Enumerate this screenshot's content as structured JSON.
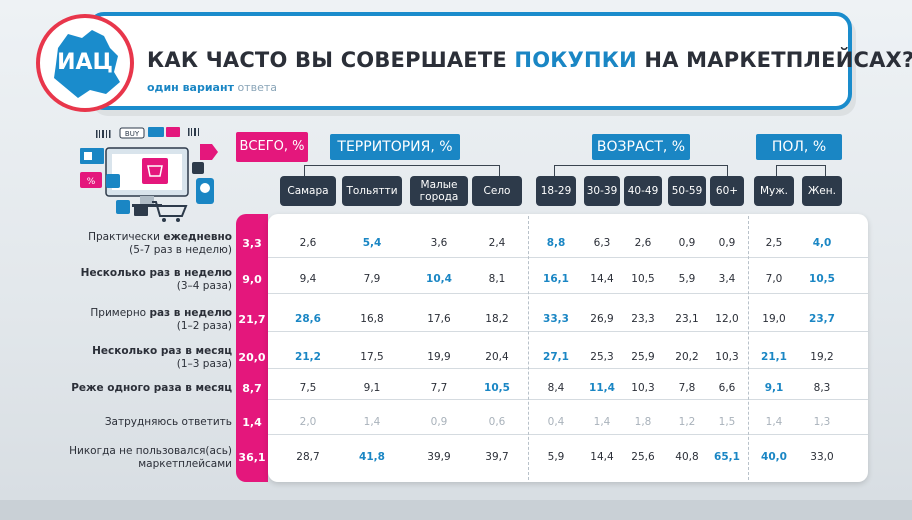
{
  "logo": {
    "text": "ИАЦ"
  },
  "header": {
    "title_pre": "КАК ЧАСТО ВЫ СОВЕРШАЕТЕ ",
    "title_hl": "ПОКУПКИ",
    "title_post": " НА МАРКЕТПЛЕЙСАХ?",
    "subtitle_main": "один вариант",
    "subtitle_muted": " ответа"
  },
  "illustration": {
    "buy_label": "BUY",
    "icon": "online-shopping-illustration"
  },
  "groups": {
    "total": "ВСЕГО, %",
    "territory": "ТЕРРИТОРИЯ, %",
    "age": "ВОЗРАСТ, %",
    "sex": "ПОЛ, %"
  },
  "columns": [
    {
      "label": "Самара"
    },
    {
      "label": "Тольятти"
    },
    {
      "label": "Малые города"
    },
    {
      "label": "Село"
    },
    {
      "label": "18-29"
    },
    {
      "label": "30-39"
    },
    {
      "label": "40-49"
    },
    {
      "label": "50-59"
    },
    {
      "label": "60+"
    },
    {
      "label": "Муж."
    },
    {
      "label": "Жен."
    }
  ],
  "rows": [
    {
      "label_a": "Практически ",
      "label_b": "ежедневно",
      "label2": "(5-7 раз в неделю)",
      "total": "3,3",
      "values": [
        "2,6",
        "5,4",
        "3,6",
        "2,4",
        "8,8",
        "6,3",
        "2,6",
        "0,9",
        "0,9",
        "2,5",
        "4,0"
      ],
      "hi": [
        1,
        4,
        10
      ]
    },
    {
      "label_a": "",
      "label_b": "Несколько раз в неделю",
      "label2": "(3–4 раза)",
      "total": "9,0",
      "values": [
        "9,4",
        "7,9",
        "10,4",
        "8,1",
        "16,1",
        "14,4",
        "10,5",
        "5,9",
        "3,4",
        "7,0",
        "10,5"
      ],
      "hi": [
        2,
        4,
        10
      ]
    },
    {
      "label_a": "Примерно ",
      "label_b": "раз в неделю",
      "label2": "(1–2 раза)",
      "total": "21,7",
      "values": [
        "28,6",
        "16,8",
        "17,6",
        "18,2",
        "33,3",
        "26,9",
        "23,3",
        "23,1",
        "12,0",
        "19,0",
        "23,7"
      ],
      "hi": [
        0,
        4,
        10
      ]
    },
    {
      "label_a": "",
      "label_b": "Несколько раз в месяц",
      "label2": "(1–3 раза)",
      "total": "20,0",
      "values": [
        "21,2",
        "17,5",
        "19,9",
        "20,4",
        "27,1",
        "25,3",
        "25,9",
        "20,2",
        "10,3",
        "21,1",
        "19,2"
      ],
      "hi": [
        0,
        4,
        9
      ]
    },
    {
      "label_a": "",
      "label_b": "Реже одного раза в месяц",
      "label2": "",
      "total": "8,7",
      "values": [
        "7,5",
        "9,1",
        "7,7",
        "10,5",
        "8,4",
        "11,4",
        "10,3",
        "7,8",
        "6,6",
        "9,1",
        "8,3"
      ],
      "hi": [
        3,
        5,
        9
      ]
    },
    {
      "label_a": "Затрудняюсь ответить",
      "label_b": "",
      "label2": "",
      "total": "1,4",
      "values": [
        "2,0",
        "1,4",
        "0,9",
        "0,6",
        "0,4",
        "1,4",
        "1,8",
        "1,2",
        "1,5",
        "1,4",
        "1,3"
      ],
      "hi": [],
      "dim": true
    },
    {
      "label_a": "Никогда не пользовался(ась)",
      "label_b": "",
      "label2": "маркетплейсами",
      "total": "36,1",
      "values": [
        "28,7",
        "41,8",
        "39,9",
        "39,7",
        "5,9",
        "14,4",
        "25,6",
        "40,8",
        "65,1",
        "40,0",
        "33,0"
      ],
      "hi": [
        1,
        8,
        9
      ]
    }
  ]
}
